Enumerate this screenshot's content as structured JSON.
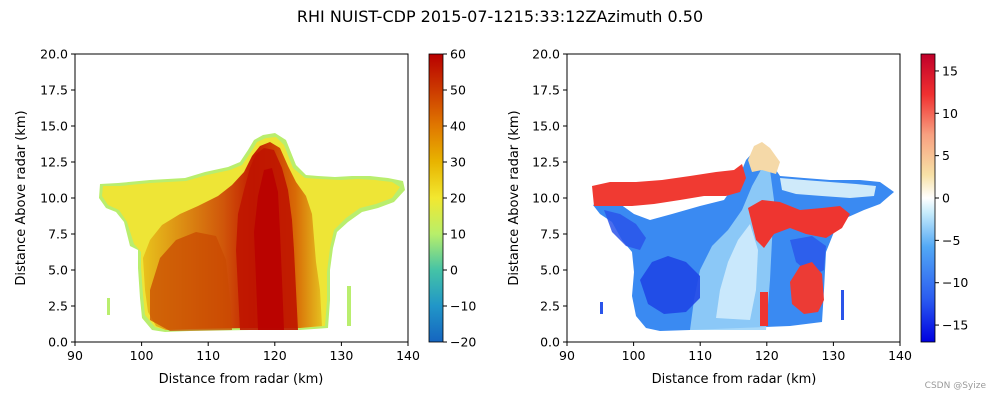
{
  "figure": {
    "title": "RHI NUIST-CDP 2015-07-1215:33:12ZAzimuth 0.50",
    "watermark": "CSDN @Syize"
  },
  "chart_data": [
    {
      "type": "heatmap",
      "xlabel": "Distance from radar (km)",
      "ylabel": "Distance Above radar  (km)",
      "xlim": [
        90,
        140
      ],
      "ylim": [
        0,
        20
      ],
      "xticks": [
        "90",
        "100",
        "110",
        "120",
        "130",
        "140"
      ],
      "yticks": [
        "0.0",
        "2.5",
        "5.0",
        "7.5",
        "10.0",
        "12.5",
        "15.0",
        "17.5",
        "20.0"
      ],
      "colorbar": {
        "range": [
          -20,
          60
        ],
        "ticks": [
          "−20",
          "−10",
          "0",
          "10",
          "20",
          "30",
          "40",
          "50",
          "60"
        ],
        "colormap": [
          "#1565c0",
          "#2196c8",
          "#45c3a6",
          "#b8ef6a",
          "#f2e830",
          "#e8b400",
          "#e07800",
          "#cc3a00",
          "#b80000"
        ]
      },
      "field_description_values": {
        "echo_top_km": 14.3,
        "anvil_height_km": [
          9.5,
          11.0
        ],
        "core_max": 60,
        "x_extent_km": [
          94,
          140
        ]
      }
    },
    {
      "type": "heatmap",
      "xlabel": "Distance from radar (km)",
      "ylabel": "Distance Above radar  (km)",
      "xlim": [
        90,
        140
      ],
      "ylim": [
        0,
        20
      ],
      "xticks": [
        "90",
        "100",
        "110",
        "120",
        "130",
        "140"
      ],
      "yticks": [
        "0.0",
        "2.5",
        "5.0",
        "7.5",
        "10.0",
        "12.5",
        "15.0",
        "17.5",
        "20.0"
      ],
      "colorbar": {
        "range": [
          -17,
          17
        ],
        "ticks": [
          "−15",
          "−10",
          "−5",
          "0",
          "5",
          "10",
          "15"
        ],
        "colormap": [
          "#0000e0",
          "#2b5cf0",
          "#52a8f5",
          "#c8ecfb",
          "#ffffff",
          "#f7e1a6",
          "#f8a080",
          "#f03030",
          "#c0002a"
        ]
      },
      "field_description_values": {
        "outbound_layer_km": [
          9.5,
          11.0
        ],
        "inbound_layer_km": [
          7.5,
          9.0
        ]
      }
    }
  ]
}
